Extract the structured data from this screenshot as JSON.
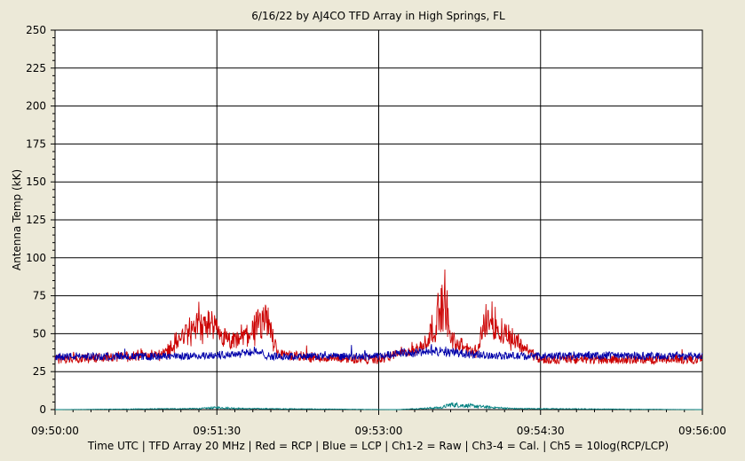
{
  "chart_data": {
    "type": "line",
    "title": "6/16/22  by  AJ4CO TFD Array  in  High Springs, FL",
    "xlabel": "Time UTC | TFD Array 20 MHz | Red = RCP | Blue = LCP | Ch1-2 = Raw | Ch3-4 = Cal. | Ch5 = 10log(RCP/LCP)",
    "ylabel": "Antenna Temp (kK)",
    "xlim": [
      "09:50:00",
      "09:56:00"
    ],
    "ylim": [
      0,
      250
    ],
    "x_ticks": [
      "09:50:00",
      "09:51:30",
      "09:53:00",
      "09:54:30",
      "09:56:00"
    ],
    "y_ticks": [
      "0",
      "25",
      "50",
      "75",
      "100",
      "125",
      "150",
      "175",
      "200",
      "225",
      "250"
    ],
    "grid": true,
    "series": [
      {
        "color": "#cc0000",
        "baseline": 33,
        "noise": 3,
        "x": [
          "09:50:00",
          "09:51:00",
          "09:51:14",
          "09:51:25",
          "09:51:38",
          "09:51:58",
          "09:52:05",
          "09:52:30",
          "09:53:00",
          "09:53:24",
          "09:53:29",
          "09:53:33",
          "09:53:37",
          "09:53:40",
          "09:53:55",
          "09:54:00",
          "09:54:08",
          "09:54:30",
          "09:55:00",
          "09:56:00"
        ],
        "values": [
          33,
          38,
          60,
          66,
          48,
          70,
          38,
          34,
          33,
          45,
          60,
          75,
          95,
          50,
          40,
          76,
          62,
          33,
          33,
          33
        ]
      },
      {
        "color": "#0000aa",
        "baseline": 35,
        "noise": 2.5,
        "x": [
          "09:50:00",
          "09:51:00",
          "09:51:30",
          "09:51:50",
          "09:52:00",
          "09:53:00",
          "09:53:10",
          "09:53:35",
          "09:54:00",
          "09:54:30",
          "09:55:00",
          "09:56:00"
        ],
        "values": [
          35,
          35,
          36,
          40,
          35,
          35,
          38,
          40,
          36,
          35,
          36,
          35
        ]
      },
      {
        "color": "#008080",
        "x": [
          "09:50:00",
          "09:51:20",
          "09:51:30",
          "09:51:45",
          "09:53:10",
          "09:53:35",
          "09:53:40",
          "09:54:05",
          "09:54:15",
          "09:56:00"
        ],
        "values": [
          0,
          1,
          2,
          1,
          0,
          2,
          5,
          2,
          1,
          0
        ]
      }
    ]
  }
}
